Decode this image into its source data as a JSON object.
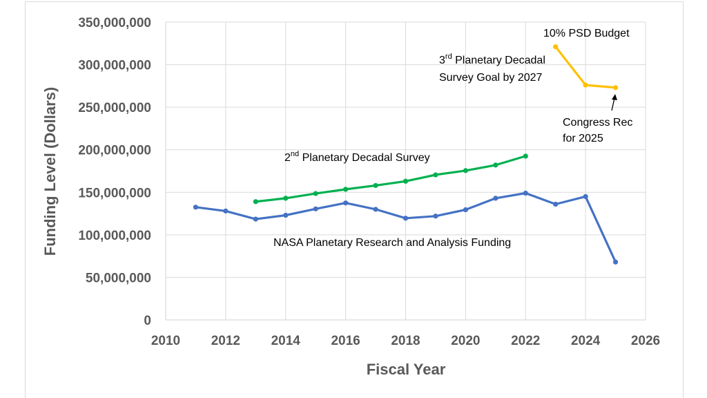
{
  "chart_data": {
    "type": "line",
    "xlabel": "Fiscal Year",
    "ylabel": "Funding Level (Dollars)",
    "xlim": [
      2010,
      2026
    ],
    "ylim": [
      0,
      350000000
    ],
    "x_ticks": [
      "2010",
      "2012",
      "2014",
      "2016",
      "2018",
      "2020",
      "2022",
      "2024",
      "2026"
    ],
    "y_ticks": [
      "0",
      "50,000,000",
      "100,000,000",
      "150,000,000",
      "200,000,000",
      "250,000,000",
      "300,000,000",
      "350,000,000"
    ],
    "grid": "vertical and horizontal",
    "series": [
      {
        "color": "#4472c4",
        "x": [
          2011,
          2012,
          2013,
          2014,
          2015,
          2016,
          2017,
          2018,
          2019,
          2020,
          2021,
          2022,
          2023,
          2024,
          2025
        ],
        "values": [
          132500000,
          128000000,
          118500000,
          123000000,
          130500000,
          137500000,
          130000000,
          119500000,
          122000000,
          129500000,
          143000000,
          149000000,
          136000000,
          145000000,
          68000000
        ]
      },
      {
        "color": "#00b050",
        "x": [
          2013,
          2014,
          2015,
          2016,
          2017,
          2018,
          2019,
          2020,
          2021,
          2022
        ],
        "values": [
          139000000,
          143000000,
          148500000,
          153500000,
          158000000,
          163000000,
          170500000,
          175500000,
          182000000,
          192500000
        ]
      },
      {
        "color": "#ffc000",
        "x": [
          2023,
          2024,
          2025
        ],
        "values": [
          321000000,
          276000000,
          273000000
        ]
      }
    ],
    "annotations": {
      "nasa": "NASA Planetary Research and Analysis Funding",
      "second_pre": "2",
      "second_sup": "nd",
      "second_post": " Planetary Decadal Survey",
      "third_pre": "3",
      "third_sup": "rd",
      "third_post": " Planetary Decadal",
      "third_line2": "Survey Goal by 2027",
      "psd": "10% PSD Budget",
      "congress_line1": "Congress Rec",
      "congress_line2": "for 2025"
    }
  }
}
